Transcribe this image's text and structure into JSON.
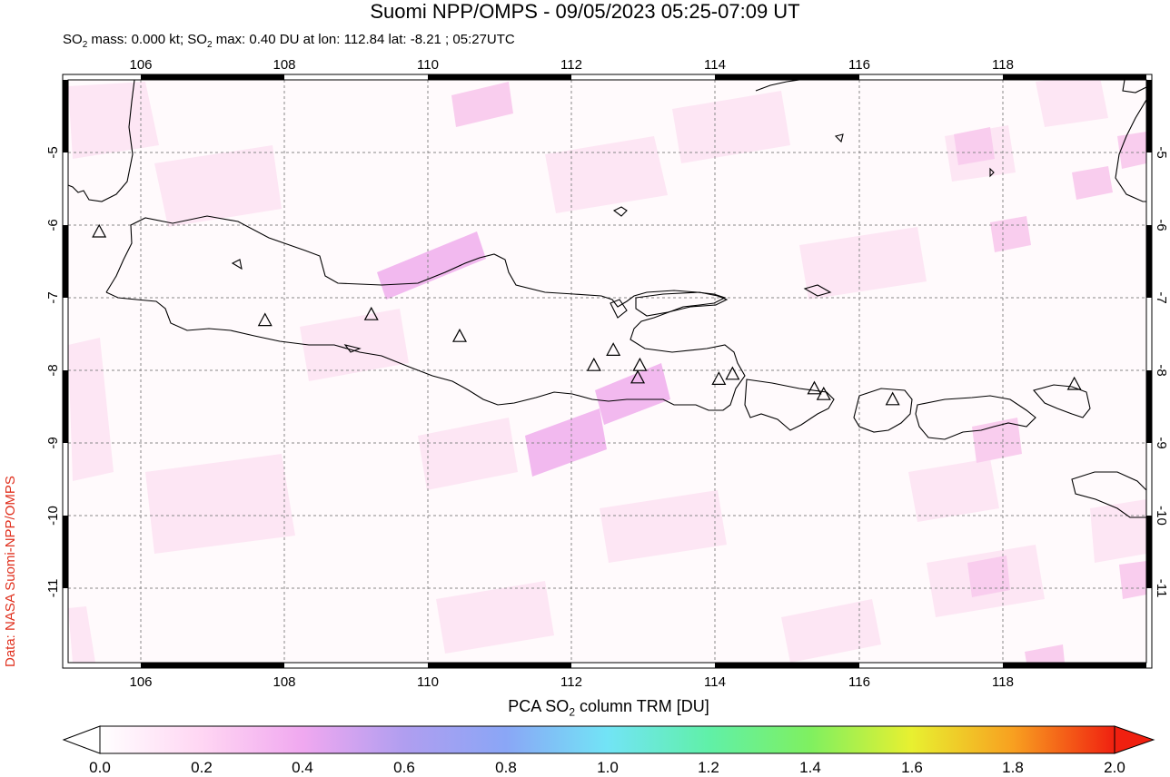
{
  "header": {
    "title": "Suomi NPP/OMPS - 09/05/2023 05:25-07:09 UT",
    "subtitle_prefix": "SO",
    "subtitle_mass": " mass: 0.000 kt; SO",
    "subtitle_max": " max: 0.40 DU at lon: 112.84 lat: -8.21 ; 05:27UTC"
  },
  "credit": "Data: NASA Suomi-NPP/OMPS",
  "map": {
    "lon_ticks": [
      "106",
      "108",
      "110",
      "112",
      "114",
      "116",
      "118"
    ],
    "lat_ticks": [
      "-5",
      "-6",
      "-7",
      "-8",
      "-9",
      "-10",
      "-11"
    ],
    "lon_range": [
      104.9,
      120.0
    ],
    "lat_range": [
      -12.0,
      -4.0
    ],
    "grid": "dashed",
    "volcanoes_lonlat": [
      [
        105.42,
        -6.1
      ],
      [
        107.73,
        -7.32
      ],
      [
        109.21,
        -7.24
      ],
      [
        110.44,
        -7.54
      ],
      [
        112.31,
        -7.94
      ],
      [
        112.58,
        -7.73
      ],
      [
        112.95,
        -7.94
      ],
      [
        112.92,
        -8.11
      ],
      [
        114.05,
        -8.13
      ],
      [
        114.24,
        -8.06
      ],
      [
        115.38,
        -8.26
      ],
      [
        115.51,
        -8.34
      ],
      [
        116.47,
        -8.41
      ],
      [
        119.0,
        -8.2
      ]
    ]
  },
  "colorbar": {
    "label_pre": "PCA SO",
    "label_post": " column TRM [DU]",
    "ticks": [
      "0.0",
      "0.2",
      "0.4",
      "0.6",
      "0.8",
      "1.0",
      "1.2",
      "1.4",
      "1.6",
      "1.8",
      "2.0"
    ],
    "range": [
      0.0,
      2.0
    ],
    "colors": [
      "#ffffff",
      "#ffd6f3",
      "#f0a8f0",
      "#b09ef0",
      "#8aa6f6",
      "#72e4f6",
      "#60f0a8",
      "#7ff060",
      "#e8f030",
      "#f8a020",
      "#f02010"
    ]
  }
}
